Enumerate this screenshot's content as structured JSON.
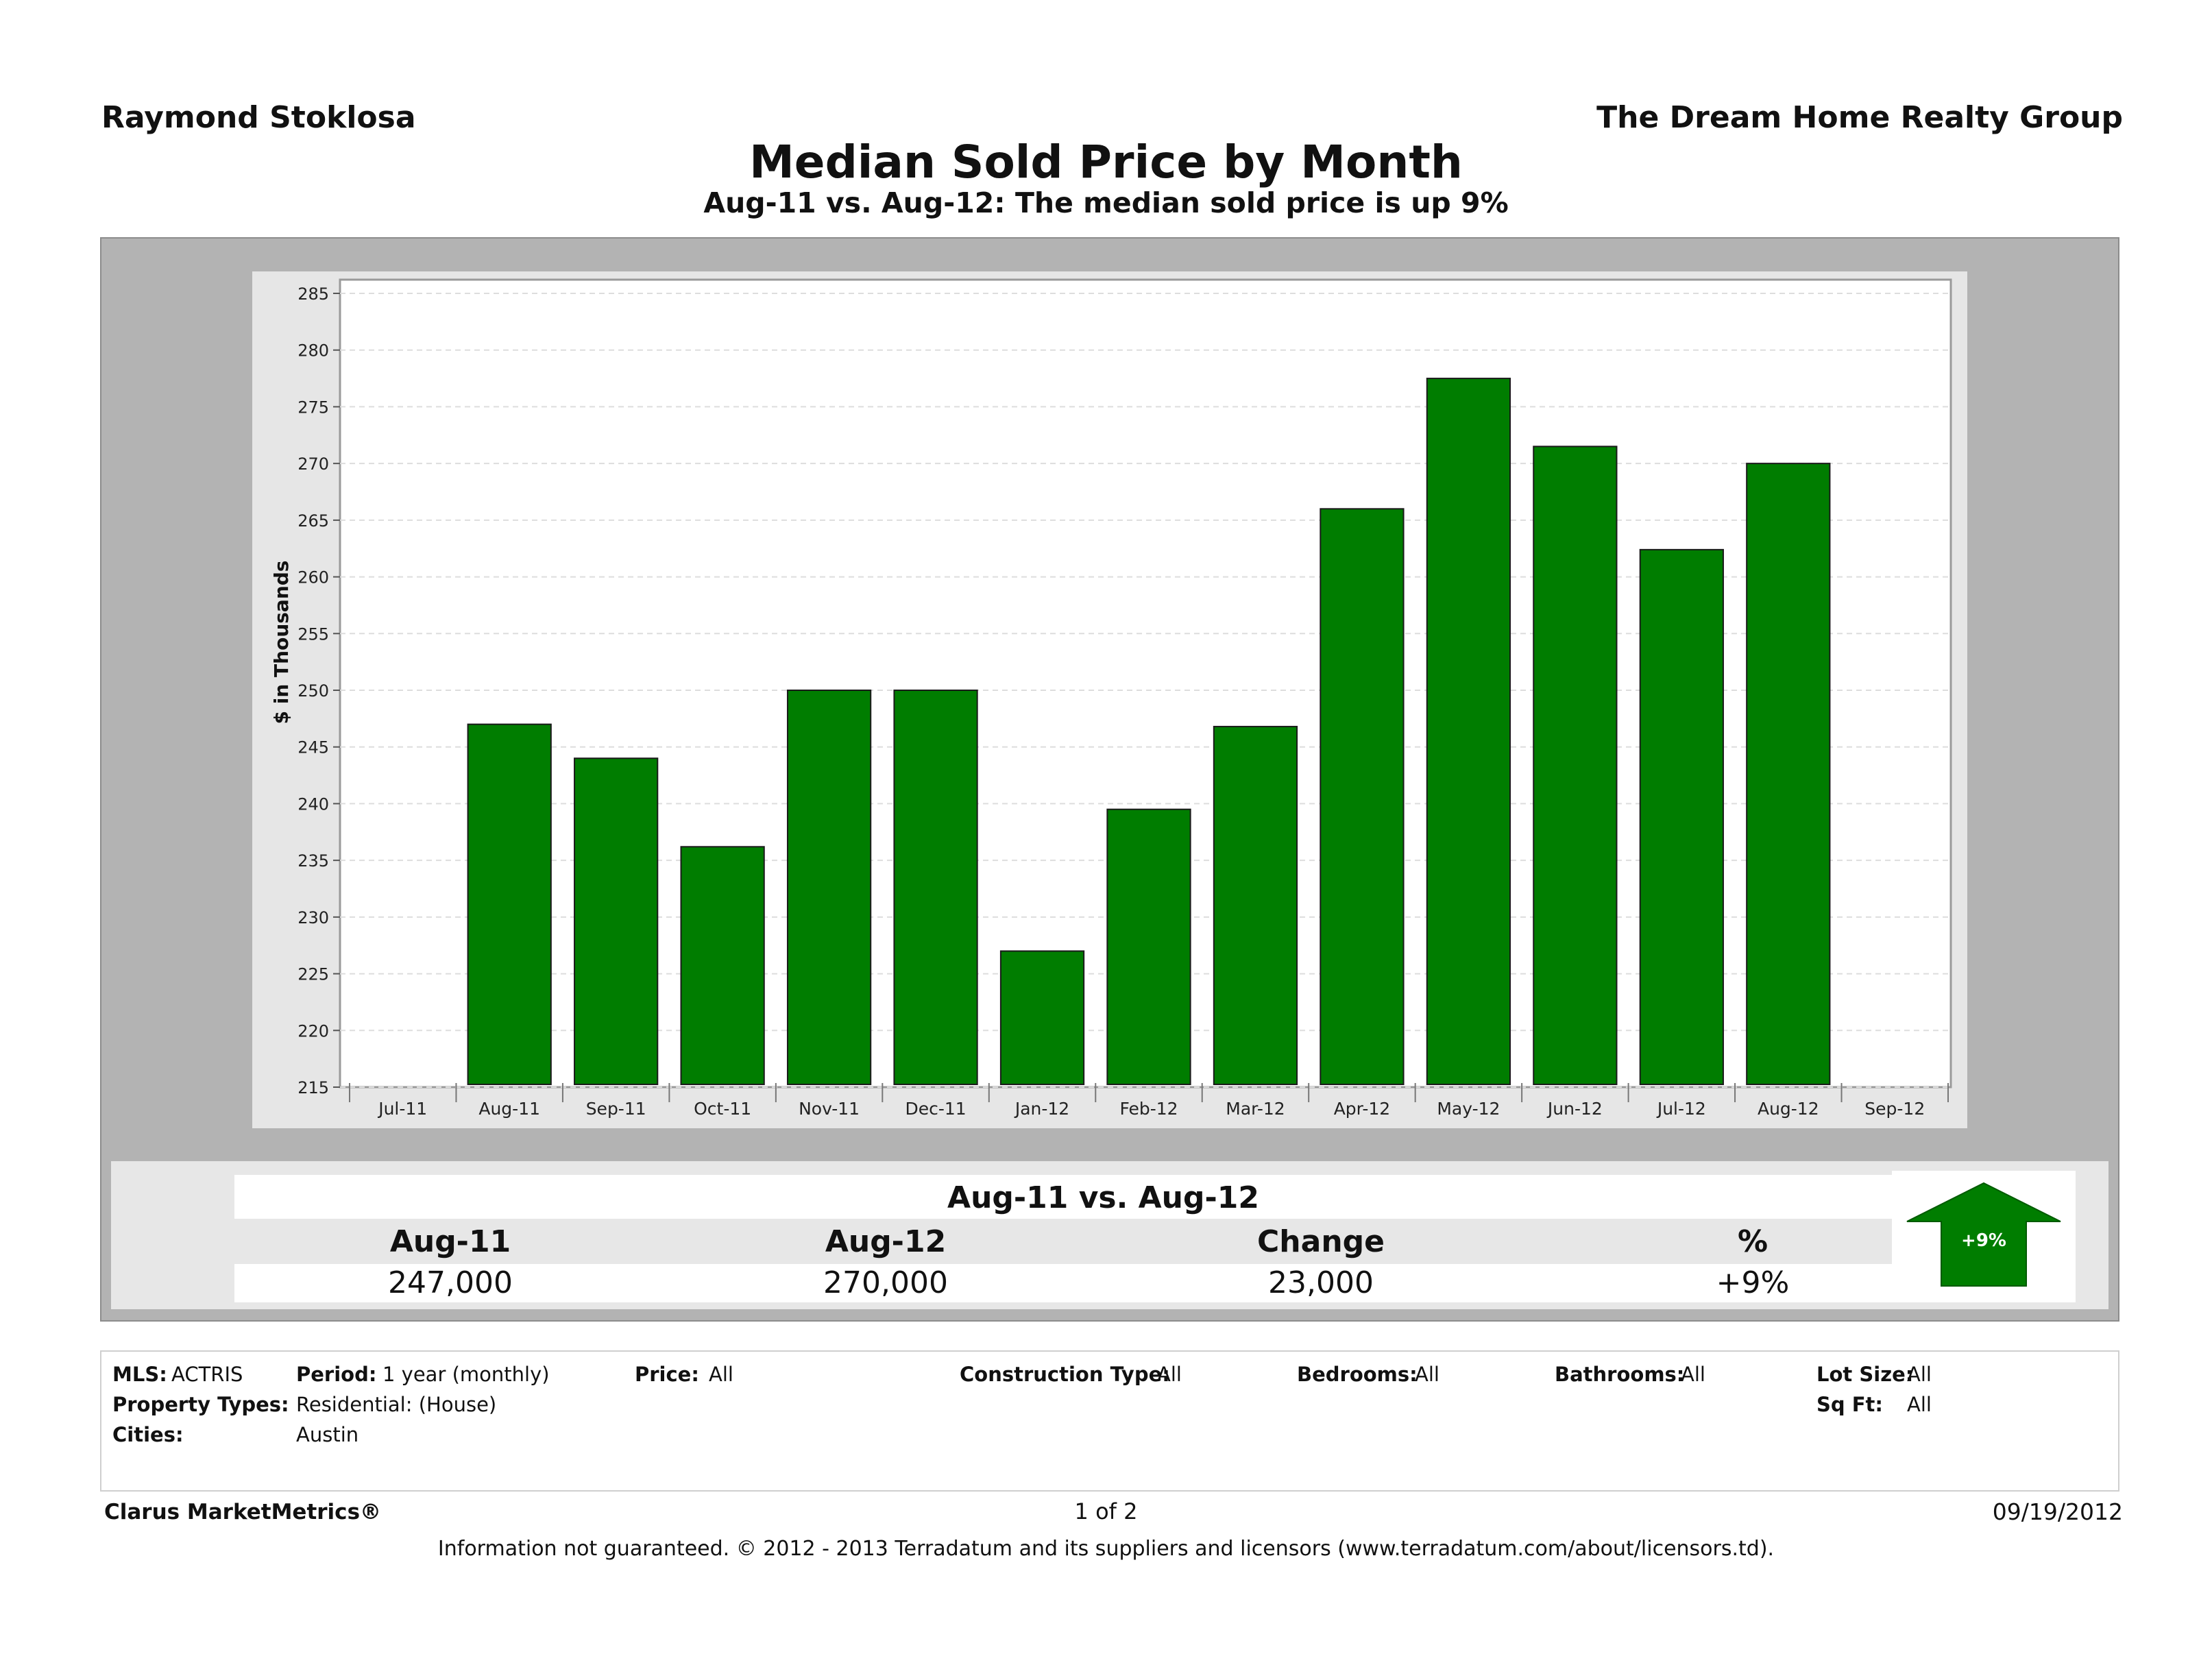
{
  "header": {
    "agent": "Raymond Stoklosa",
    "company": "The Dream Home Realty Group",
    "title": "Median Sold Price by Month",
    "subtitle": "Aug-11 vs. Aug-12:  The median sold price is up 9%"
  },
  "colors": {
    "bar": "#007d00",
    "outer_bg": "#b3b3b3",
    "plot_bg": "#ffffff",
    "arrow": "#007d00"
  },
  "chart_data": {
    "type": "bar",
    "title": "",
    "xlabel": "",
    "ylabel": "$ in Thousands",
    "ylim": [
      215,
      285
    ],
    "yticks": [
      215,
      220,
      225,
      230,
      235,
      240,
      245,
      250,
      255,
      260,
      265,
      270,
      275,
      280,
      285
    ],
    "x_tick_labels": [
      "Jul-11",
      "Aug-11",
      "Sep-11",
      "Oct-11",
      "Nov-11",
      "Dec-11",
      "Jan-12",
      "Feb-12",
      "Mar-12",
      "Apr-12",
      "May-12",
      "Jun-12",
      "Jul-12",
      "Aug-12",
      "Sep-12"
    ],
    "categories": [
      "Aug-11",
      "Sep-11",
      "Oct-11",
      "Nov-11",
      "Dec-11",
      "Jan-12",
      "Feb-12",
      "Mar-12",
      "Apr-12",
      "May-12",
      "Jun-12",
      "Jul-12",
      "Aug-12"
    ],
    "values": [
      247,
      244,
      236.2,
      250,
      250,
      227,
      239.5,
      246.8,
      266,
      277.5,
      271.5,
      262.4,
      270
    ],
    "grid": true,
    "legend": "none"
  },
  "summary": {
    "heading": "Aug-11 vs. Aug-12",
    "columns": [
      "Aug-11",
      "Aug-12",
      "Change",
      "%"
    ],
    "values": [
      "247,000",
      "270,000",
      "23,000",
      "+9%"
    ],
    "arrow_label": "+9%"
  },
  "filters": {
    "mls_label": "MLS:",
    "mls_value": "ACTRIS",
    "period_label": "Period:",
    "period_value": "1 year (monthly)",
    "price_label": "Price:",
    "price_value": "All",
    "construction_label": "Construction Type:",
    "construction_value": "All",
    "bedrooms_label": "Bedrooms:",
    "bedrooms_value": "All",
    "bathrooms_label": "Bathrooms:",
    "bathrooms_value": "All",
    "lotsize_label": "Lot Size:",
    "lotsize_value": "All",
    "proptypes_label": "Property Types:",
    "proptypes_value": "Residential: (House)",
    "sqft_label": "Sq Ft:",
    "sqft_value": "All",
    "cities_label": "Cities:",
    "cities_value": "Austin"
  },
  "footer": {
    "brand": "Clarus MarketMetrics®",
    "page": "1 of 2",
    "date": "09/19/2012",
    "disclaimer": "Information not guaranteed.  © 2012 - 2013 Terradatum and its suppliers and licensors (www.terradatum.com/about/licensors.td)."
  }
}
